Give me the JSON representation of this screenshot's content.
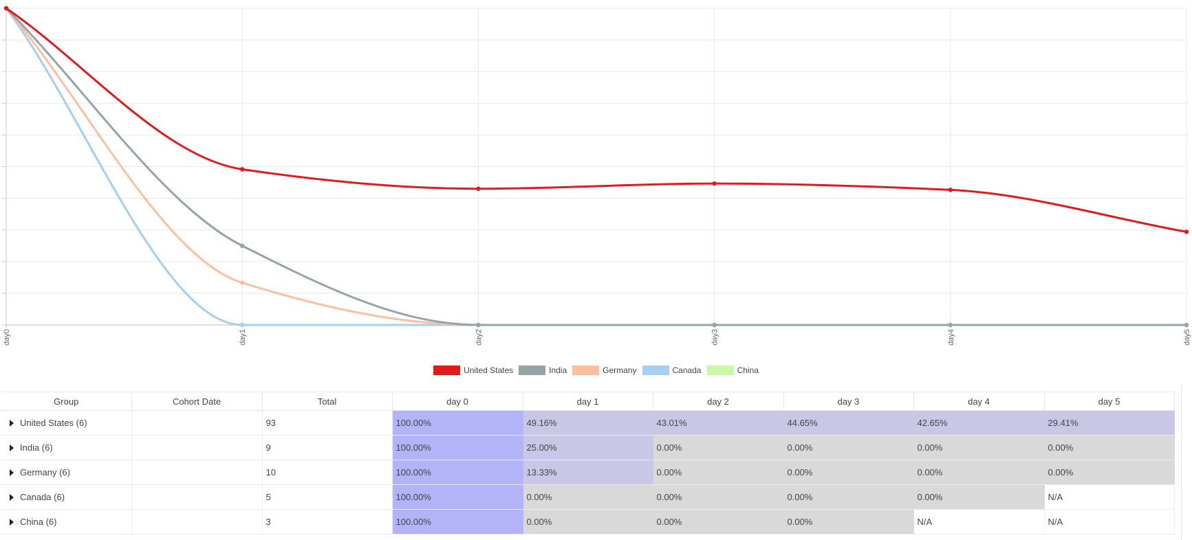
{
  "chart_data": {
    "type": "line",
    "categories": [
      "day0",
      "day1",
      "day2",
      "day3",
      "day4",
      "day5"
    ],
    "ylim": [
      0,
      100
    ],
    "grid": true,
    "legend_position": "bottom-center",
    "series": [
      {
        "name": "United States",
        "color": "#e31a1c",
        "values": [
          100,
          49.16,
          43.01,
          44.65,
          42.65,
          29.41
        ]
      },
      {
        "name": "India",
        "color": "#95a5a3",
        "values": [
          100,
          25.0,
          0,
          0,
          0,
          0
        ]
      },
      {
        "name": "Germany",
        "color": "#fdbf9f",
        "values": [
          100,
          13.33,
          0,
          0,
          0,
          0
        ]
      },
      {
        "name": "Canada",
        "color": "#a6cff2",
        "values": [
          100,
          0,
          0,
          0,
          0,
          null
        ]
      },
      {
        "name": "China",
        "color": "#c8f9a8",
        "values": [
          100,
          0,
          0,
          0,
          null,
          null
        ]
      }
    ]
  },
  "table": {
    "headers": [
      "Group",
      "Cohort Date",
      "Total",
      "day 0",
      "day 1",
      "day 2",
      "day 3",
      "day 4",
      "day 5"
    ],
    "rows": [
      {
        "group": "United States (6)",
        "cohort_date": "",
        "total": "93",
        "cells": [
          "100.00%",
          "49.16%",
          "43.01%",
          "44.65%",
          "42.65%",
          "29.41%"
        ]
      },
      {
        "group": "India (6)",
        "cohort_date": "",
        "total": "9",
        "cells": [
          "100.00%",
          "25.00%",
          "0.00%",
          "0.00%",
          "0.00%",
          "0.00%"
        ]
      },
      {
        "group": "Germany (6)",
        "cohort_date": "",
        "total": "10",
        "cells": [
          "100.00%",
          "13.33%",
          "0.00%",
          "0.00%",
          "0.00%",
          "0.00%"
        ]
      },
      {
        "group": "Canada (6)",
        "cohort_date": "",
        "total": "5",
        "cells": [
          "100.00%",
          "0.00%",
          "0.00%",
          "0.00%",
          "0.00%",
          "N/A"
        ]
      },
      {
        "group": "China (6)",
        "cohort_date": "",
        "total": "3",
        "cells": [
          "100.00%",
          "0.00%",
          "0.00%",
          "0.00%",
          "N/A",
          "N/A"
        ]
      }
    ],
    "cell_colors": {
      "full": "#b3b3f7",
      "partial": "#c8c8e6",
      "zero": "#d9d9d9",
      "na": "#ffffff"
    }
  }
}
